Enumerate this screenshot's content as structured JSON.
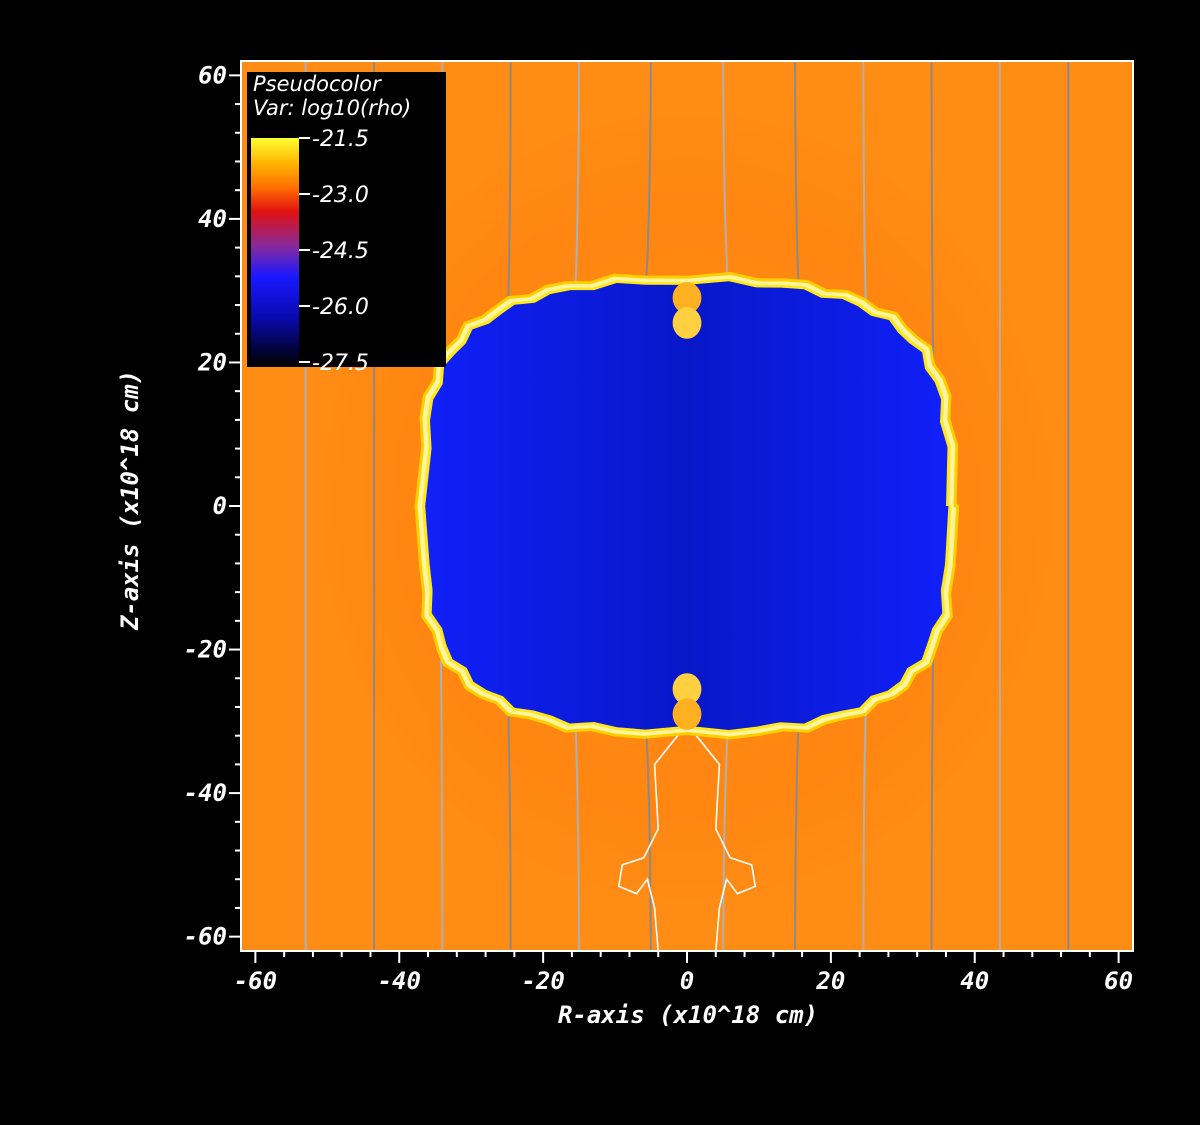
{
  "chart_data": {
    "type": "heatmap",
    "title": "",
    "xlabel": "R-axis (x10^18 cm)",
    "ylabel": "Z-axis (x10^18 cm)",
    "xlim": [
      -62,
      62
    ],
    "ylim": [
      -62,
      62
    ],
    "x_ticks": [
      -60,
      -40,
      -20,
      0,
      20,
      40,
      60
    ],
    "y_ticks": [
      60,
      40,
      20,
      0,
      -20,
      -40,
      -60
    ],
    "variable": "log10(rho)",
    "legend": {
      "title": "Pseudocolor",
      "var_label": "Var: log10(rho)",
      "placement": "top-left",
      "ticks": [
        "-21.5",
        "-23.0",
        "-24.5",
        "-26.0",
        "-27.5"
      ],
      "colormap": [
        "#ffff30",
        "#ff8c00",
        "#e01010",
        "#2020ff",
        "#000010"
      ]
    },
    "background_log_rho": -22.6,
    "bubble": {
      "log_rho": -26.0,
      "r_extent": [
        -36,
        36
      ],
      "z_extent": [
        -31,
        31
      ]
    },
    "colors": {
      "ambient": "#ff8c14",
      "bubble": "#0c20f0",
      "shell": "#ffe81a",
      "field_lines": "#9a9a9a"
    },
    "field_lines_r": [
      -53,
      -43.5,
      -34,
      -24.5,
      -15,
      -5,
      5,
      15,
      24.5,
      34,
      43.5,
      53
    ]
  }
}
